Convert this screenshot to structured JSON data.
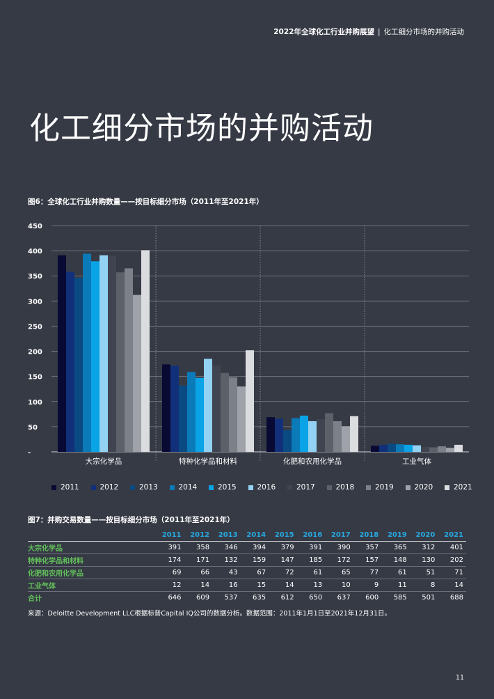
{
  "header": {
    "report": "2022年全球化工行业并购展望",
    "separator": "|",
    "section": "化工细分市场的并购活动"
  },
  "page_title": "化工细分市场的并购活动",
  "fig6": {
    "caption": "图6：全球化工行业并购数量——按目标细分市场（2011年至2021年）"
  },
  "fig7": {
    "caption": "图7：并购交易数量——按目标细分市场（2011年至2021年）"
  },
  "chart_data": {
    "type": "bar",
    "categories": [
      "大宗化学品",
      "特种化学品和材料",
      "化肥和农用化学品",
      "工业气体"
    ],
    "series": [
      {
        "name": "2011",
        "color": "#080a33",
        "values": [
          391,
          174,
          69,
          12
        ]
      },
      {
        "name": "2012",
        "color": "#12307a",
        "values": [
          358,
          171,
          66,
          14
        ]
      },
      {
        "name": "2013",
        "color": "#0a4a82",
        "values": [
          346,
          132,
          43,
          16
        ]
      },
      {
        "name": "2014",
        "color": "#0b7ab8",
        "values": [
          394,
          159,
          67,
          15
        ]
      },
      {
        "name": "2015",
        "color": "#09a3e6",
        "values": [
          379,
          147,
          72,
          14
        ]
      },
      {
        "name": "2016",
        "color": "#93d2f2",
        "values": [
          391,
          185,
          61,
          13
        ]
      },
      {
        "name": "2017",
        "color": "#3f4450",
        "values": [
          390,
          172,
          65,
          10
        ]
      },
      {
        "name": "2018",
        "color": "#5c6068",
        "values": [
          357,
          157,
          77,
          9
        ]
      },
      {
        "name": "2019",
        "color": "#7c8088",
        "values": [
          365,
          148,
          61,
          11
        ]
      },
      {
        "name": "2020",
        "color": "#9fa2a8",
        "values": [
          312,
          130,
          51,
          8
        ]
      },
      {
        "name": "2021",
        "color": "#dbdcdf",
        "values": [
          401,
          202,
          71,
          14
        ]
      }
    ],
    "ylim": [
      0,
      450
    ],
    "yticks": [
      {
        "v": 450,
        "label": "450"
      },
      {
        "v": 400,
        "label": "400"
      },
      {
        "v": 350,
        "label": "350"
      },
      {
        "v": 300,
        "label": "300"
      },
      {
        "v": 250,
        "label": "250"
      },
      {
        "v": 200,
        "label": "200"
      },
      {
        "v": 150,
        "label": "150"
      },
      {
        "v": 100,
        "label": "100"
      },
      {
        "v": 50,
        "label": "50"
      },
      {
        "v": 0,
        "label": "-"
      }
    ],
    "grid": true,
    "legend": "bottom"
  },
  "table": {
    "years": [
      "2011",
      "2012",
      "2013",
      "2014",
      "2015",
      "2016",
      "2017",
      "2018",
      "2019",
      "2020",
      "2021"
    ],
    "rows": [
      {
        "label": "大宗化学品",
        "values": [
          391,
          358,
          346,
          394,
          379,
          391,
          390,
          357,
          365,
          312,
          401
        ]
      },
      {
        "label": "特种化学品和材料",
        "values": [
          174,
          171,
          132,
          159,
          147,
          185,
          172,
          157,
          148,
          130,
          202
        ]
      },
      {
        "label": "化肥和农用化学品",
        "values": [
          69,
          66,
          43,
          67,
          72,
          61,
          65,
          77,
          61,
          51,
          71
        ]
      },
      {
        "label": "工业气体",
        "values": [
          12,
          14,
          16,
          15,
          14,
          13,
          10,
          9,
          11,
          8,
          14
        ]
      },
      {
        "label": "合计",
        "values": [
          646,
          609,
          537,
          635,
          612,
          650,
          637,
          600,
          585,
          501,
          688
        ]
      }
    ]
  },
  "source_note": "来源：Deloitte Development LLC根据标普Capital IQ公司的数据分析。数据范围：2011年1月1日至2021年12月31日。",
  "page_number": "11"
}
